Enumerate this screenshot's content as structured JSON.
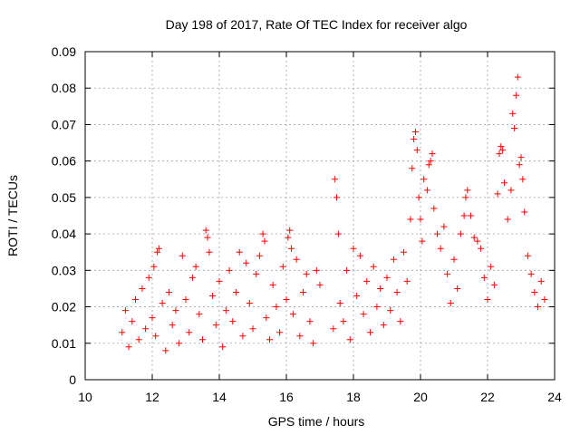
{
  "chart_data": {
    "type": "scatter",
    "title": "Day 198 of 2017, Rate Of TEC Index for receiver algo",
    "xlabel": "GPS time / hours",
    "ylabel": "ROTI / TECUs",
    "xlim": [
      10,
      24
    ],
    "ylim": [
      0,
      0.09
    ],
    "xticks": [
      "10",
      "12",
      "14",
      "16",
      "18",
      "20",
      "22",
      "24"
    ],
    "yticks": [
      "0",
      "0.01",
      "0.02",
      "0.03",
      "0.04",
      "0.05",
      "0.06",
      "0.07",
      "0.08",
      "0.09"
    ],
    "grid": true,
    "marker": "plus",
    "color": "#ff0000",
    "series": [
      {
        "points": [
          [
            11.1,
            0.013
          ],
          [
            11.2,
            0.019
          ],
          [
            11.3,
            0.009
          ],
          [
            11.4,
            0.016
          ],
          [
            11.5,
            0.022
          ],
          [
            11.6,
            0.011
          ],
          [
            11.7,
            0.025
          ],
          [
            11.8,
            0.014
          ],
          [
            11.9,
            0.028
          ],
          [
            12.0,
            0.017
          ],
          [
            12.05,
            0.031
          ],
          [
            12.1,
            0.012
          ],
          [
            12.15,
            0.035
          ],
          [
            12.2,
            0.036
          ],
          [
            12.3,
            0.021
          ],
          [
            12.4,
            0.008
          ],
          [
            12.5,
            0.024
          ],
          [
            12.6,
            0.015
          ],
          [
            12.7,
            0.019
          ],
          [
            12.8,
            0.01
          ],
          [
            12.9,
            0.034
          ],
          [
            13.0,
            0.022
          ],
          [
            13.1,
            0.013
          ],
          [
            13.2,
            0.028
          ],
          [
            13.3,
            0.031
          ],
          [
            13.4,
            0.018
          ],
          [
            13.5,
            0.011
          ],
          [
            13.6,
            0.041
          ],
          [
            13.65,
            0.039
          ],
          [
            13.7,
            0.035
          ],
          [
            13.8,
            0.023
          ],
          [
            13.9,
            0.015
          ],
          [
            14.0,
            0.027
          ],
          [
            14.1,
            0.009
          ],
          [
            14.2,
            0.019
          ],
          [
            14.3,
            0.03
          ],
          [
            14.4,
            0.016
          ],
          [
            14.5,
            0.024
          ],
          [
            14.6,
            0.035
          ],
          [
            14.7,
            0.012
          ],
          [
            14.8,
            0.032
          ],
          [
            14.9,
            0.021
          ],
          [
            15.0,
            0.014
          ],
          [
            15.1,
            0.029
          ],
          [
            15.2,
            0.034
          ],
          [
            15.3,
            0.04
          ],
          [
            15.35,
            0.038
          ],
          [
            15.4,
            0.017
          ],
          [
            15.5,
            0.011
          ],
          [
            15.6,
            0.026
          ],
          [
            15.7,
            0.02
          ],
          [
            15.8,
            0.013
          ],
          [
            15.9,
            0.031
          ],
          [
            16.0,
            0.022
          ],
          [
            16.05,
            0.039
          ],
          [
            16.1,
            0.041
          ],
          [
            16.15,
            0.036
          ],
          [
            16.2,
            0.018
          ],
          [
            16.3,
            0.033
          ],
          [
            16.4,
            0.012
          ],
          [
            16.5,
            0.024
          ],
          [
            16.6,
            0.029
          ],
          [
            16.7,
            0.016
          ],
          [
            16.8,
            0.01
          ],
          [
            16.9,
            0.03
          ],
          [
            17.0,
            0.026
          ],
          [
            17.4,
            0.014
          ],
          [
            17.45,
            0.055
          ],
          [
            17.5,
            0.05
          ],
          [
            17.55,
            0.04
          ],
          [
            17.6,
            0.021
          ],
          [
            17.7,
            0.016
          ],
          [
            17.8,
            0.03
          ],
          [
            17.9,
            0.011
          ],
          [
            18.0,
            0.036
          ],
          [
            18.1,
            0.023
          ],
          [
            18.2,
            0.034
          ],
          [
            18.3,
            0.018
          ],
          [
            18.4,
            0.027
          ],
          [
            18.5,
            0.013
          ],
          [
            18.6,
            0.031
          ],
          [
            18.7,
            0.02
          ],
          [
            18.8,
            0.025
          ],
          [
            18.9,
            0.015
          ],
          [
            19.0,
            0.028
          ],
          [
            19.1,
            0.019
          ],
          [
            19.2,
            0.033
          ],
          [
            19.3,
            0.024
          ],
          [
            19.4,
            0.016
          ],
          [
            19.5,
            0.035
          ],
          [
            19.6,
            0.027
          ],
          [
            19.7,
            0.044
          ],
          [
            19.75,
            0.058
          ],
          [
            19.8,
            0.066
          ],
          [
            19.85,
            0.068
          ],
          [
            19.9,
            0.063
          ],
          [
            19.95,
            0.05
          ],
          [
            20.0,
            0.044
          ],
          [
            20.05,
            0.038
          ],
          [
            20.1,
            0.055
          ],
          [
            20.2,
            0.052
          ],
          [
            20.25,
            0.059
          ],
          [
            20.3,
            0.06
          ],
          [
            20.35,
            0.062
          ],
          [
            20.4,
            0.047
          ],
          [
            20.5,
            0.04
          ],
          [
            20.6,
            0.036
          ],
          [
            20.7,
            0.042
          ],
          [
            20.8,
            0.029
          ],
          [
            20.9,
            0.021
          ],
          [
            21.0,
            0.033
          ],
          [
            21.1,
            0.025
          ],
          [
            21.2,
            0.04
          ],
          [
            21.3,
            0.045
          ],
          [
            21.35,
            0.05
          ],
          [
            21.4,
            0.052
          ],
          [
            21.5,
            0.045
          ],
          [
            21.6,
            0.039
          ],
          [
            21.7,
            0.038
          ],
          [
            21.8,
            0.036
          ],
          [
            21.9,
            0.028
          ],
          [
            22.0,
            0.022
          ],
          [
            22.1,
            0.031
          ],
          [
            22.2,
            0.026
          ],
          [
            22.3,
            0.051
          ],
          [
            22.35,
            0.062
          ],
          [
            22.4,
            0.064
          ],
          [
            22.45,
            0.063
          ],
          [
            22.5,
            0.054
          ],
          [
            22.6,
            0.044
          ],
          [
            22.7,
            0.052
          ],
          [
            22.75,
            0.073
          ],
          [
            22.8,
            0.069
          ],
          [
            22.85,
            0.078
          ],
          [
            22.9,
            0.083
          ],
          [
            22.95,
            0.059
          ],
          [
            23.0,
            0.061
          ],
          [
            23.05,
            0.055
          ],
          [
            23.1,
            0.046
          ],
          [
            23.2,
            0.034
          ],
          [
            23.3,
            0.029
          ],
          [
            23.4,
            0.024
          ],
          [
            23.5,
            0.02
          ],
          [
            23.6,
            0.027
          ],
          [
            23.7,
            0.022
          ]
        ]
      }
    ]
  }
}
